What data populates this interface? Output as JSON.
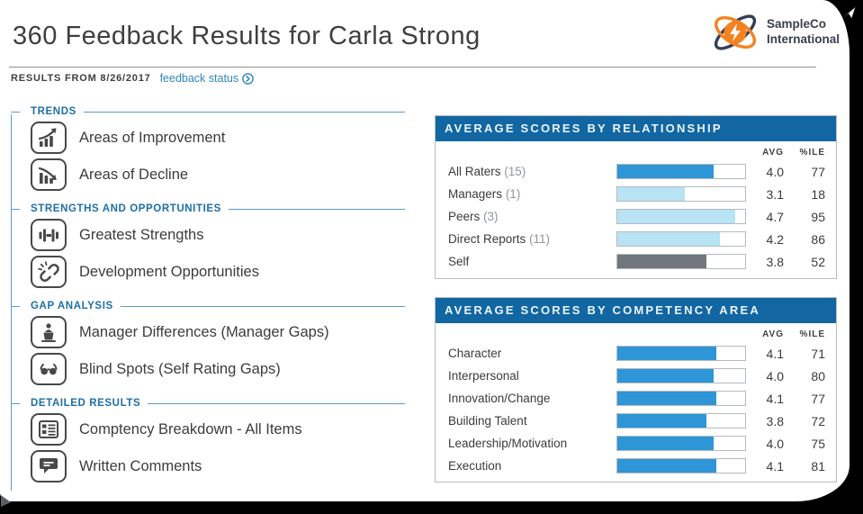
{
  "page": {
    "title": "360 Feedback Results for Carla Strong",
    "results_from": "RESULTS FROM 8/26/2017",
    "feedback_status_link": "feedback status"
  },
  "logo": {
    "line1": "SampleCo",
    "line2": "International"
  },
  "colors": {
    "panel_header_blue": "#1266a2",
    "bar_primary_blue": "#2e96d6",
    "bar_light_blue": "#b7e3f4",
    "bar_gray": "#72777d",
    "section_label_blue": "#1d6fa8",
    "link_blue": "#2e86c1",
    "logo_orange": "#f5821f"
  },
  "sidebar": {
    "sections": [
      {
        "label": "TRENDS",
        "items": [
          {
            "icon": "chart-increase-icon",
            "label": "Areas of Improvement"
          },
          {
            "icon": "chart-decline-icon",
            "label": "Areas of Decline"
          }
        ]
      },
      {
        "label": "STRENGTHS AND OPPORTUNITIES",
        "items": [
          {
            "icon": "dumbbell-icon",
            "label": "Greatest Strengths"
          },
          {
            "icon": "broken-link-icon",
            "label": "Development Opportunities"
          }
        ]
      },
      {
        "label": "GAP ANALYSIS",
        "items": [
          {
            "icon": "lectern-person-icon",
            "label": "Manager Differences (Manager Gaps)"
          },
          {
            "icon": "glasses-icon",
            "label": "Blind Spots (Self Rating Gaps)"
          }
        ]
      },
      {
        "label": "DETAILED RESULTS",
        "items": [
          {
            "icon": "list-detail-icon",
            "label": "Comptency Breakdown - All Items"
          },
          {
            "icon": "speech-bubble-icon",
            "label": "Written Comments"
          }
        ]
      }
    ]
  },
  "panels": [
    {
      "title": "AVERAGE SCORES BY RELATIONSHIP",
      "col_avg": "AVG",
      "col_pct": "%ILE",
      "rows": [
        {
          "label": "All Raters",
          "count": "(15)",
          "avg": "4.0",
          "pct": "77",
          "bar": "primary"
        },
        {
          "label": "Managers",
          "count": "(1)",
          "avg": "3.1",
          "pct": "18",
          "bar": "light"
        },
        {
          "label": "Peers",
          "count": "(3)",
          "avg": "4.7",
          "pct": "95",
          "bar": "light"
        },
        {
          "label": "Direct Reports",
          "count": "(11)",
          "avg": "4.2",
          "pct": "86",
          "bar": "light"
        },
        {
          "label": "Self",
          "count": "",
          "avg": "3.8",
          "pct": "52",
          "bar": "gray"
        }
      ]
    },
    {
      "title": "AVERAGE SCORES BY COMPETENCY AREA",
      "col_avg": "AVG",
      "col_pct": "%ILE",
      "rows": [
        {
          "label": "Character",
          "count": "",
          "avg": "4.1",
          "pct": "71",
          "bar": "primary"
        },
        {
          "label": "Interpersonal",
          "count": "",
          "avg": "4.0",
          "pct": "80",
          "bar": "primary"
        },
        {
          "label": "Innovation/Change",
          "count": "",
          "avg": "4.1",
          "pct": "77",
          "bar": "primary"
        },
        {
          "label": "Building Talent",
          "count": "",
          "avg": "3.8",
          "pct": "72",
          "bar": "primary"
        },
        {
          "label": "Leadership/Motivation",
          "count": "",
          "avg": "4.0",
          "pct": "75",
          "bar": "primary"
        },
        {
          "label": "Execution",
          "count": "",
          "avg": "4.1",
          "pct": "81",
          "bar": "primary"
        }
      ]
    }
  ],
  "chart_data": [
    {
      "type": "bar",
      "title": "AVERAGE SCORES BY RELATIONSHIP",
      "categories": [
        "All Raters (15)",
        "Managers (1)",
        "Peers (3)",
        "Direct Reports (11)",
        "Self"
      ],
      "series": [
        {
          "name": "AVG",
          "values": [
            4.0,
            3.1,
            4.7,
            4.2,
            3.8
          ]
        },
        {
          "name": "%ILE",
          "values": [
            77,
            18,
            95,
            86,
            52
          ]
        }
      ],
      "xlim": [
        1,
        5
      ],
      "orientation": "horizontal",
      "grid": false,
      "legend": "none"
    },
    {
      "type": "bar",
      "title": "AVERAGE SCORES BY COMPETENCY AREA",
      "categories": [
        "Character",
        "Interpersonal",
        "Innovation/Change",
        "Building Talent",
        "Leadership/Motivation",
        "Execution"
      ],
      "series": [
        {
          "name": "AVG",
          "values": [
            4.1,
            4.0,
            4.1,
            3.8,
            4.0,
            4.1
          ]
        },
        {
          "name": "%ILE",
          "values": [
            71,
            80,
            77,
            72,
            75,
            81
          ]
        }
      ],
      "xlim": [
        1,
        5
      ],
      "orientation": "horizontal",
      "grid": false,
      "legend": "none"
    }
  ]
}
